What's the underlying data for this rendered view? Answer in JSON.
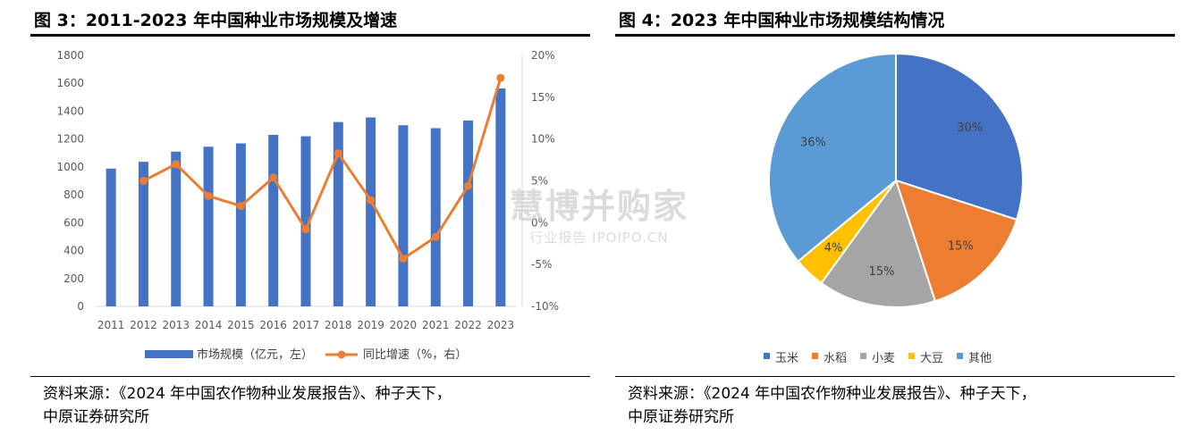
{
  "left": {
    "title": "图 3：2011-2023 年中国种业市场规模及增速",
    "source_line1": "资料来源：《2024 年中国农作物种业发展报告》、种子天下，",
    "source_line2": "中原证券研究所"
  },
  "right": {
    "title": "图 4：2023 年中国种业市场规模结构情况",
    "source_line1": "资料来源：《2024 年中国农作物种业发展报告》、种子天下，",
    "source_line2": "中原证券研究所"
  },
  "watermark": {
    "main": "慧博",
    "brand": "并购家",
    "sub": "行业报告 IPOIPO.CN"
  },
  "chart_data": [
    {
      "type": "bar",
      "categories": [
        "2011",
        "2012",
        "2013",
        "2014",
        "2015",
        "2016",
        "2017",
        "2018",
        "2019",
        "2020",
        "2021",
        "2022",
        "2023"
      ],
      "series": [
        {
          "name": "市场规模（亿元，左）",
          "type": "bar",
          "axis": "left",
          "color": "#4472C4",
          "values": [
            988,
            1037,
            1110,
            1145,
            1169,
            1230,
            1220,
            1322,
            1355,
            1299,
            1278,
            1333,
            1563
          ]
        },
        {
          "name": "同比增速（%，右）",
          "type": "line",
          "axis": "right",
          "color": "#ED7D31",
          "values": [
            null,
            5.0,
            7.0,
            3.2,
            2.0,
            5.4,
            -0.8,
            8.3,
            2.7,
            -4.3,
            -1.7,
            4.4,
            17.3
          ]
        }
      ],
      "y_left": {
        "min": 0,
        "max": 1800,
        "step": 200,
        "ticks": [
          "0",
          "200",
          "400",
          "600",
          "800",
          "1000",
          "1200",
          "1400",
          "1600",
          "1800"
        ]
      },
      "y_right": {
        "min": -10,
        "max": 20,
        "step": 5,
        "ticks": [
          "-10%",
          "-5%",
          "0%",
          "5%",
          "10%",
          "15%",
          "20%"
        ]
      },
      "grid": false,
      "legend_position": "bottom"
    },
    {
      "type": "pie",
      "slices": [
        {
          "name": "玉米",
          "value": 30,
          "label": "30%",
          "color": "#4472C4"
        },
        {
          "name": "水稻",
          "value": 15,
          "label": "15%",
          "color": "#ED7D31"
        },
        {
          "name": "小麦",
          "value": 15,
          "label": "15%",
          "color": "#A5A5A5"
        },
        {
          "name": "大豆",
          "value": 4,
          "label": "4%",
          "color": "#FFC000"
        },
        {
          "name": "其他",
          "value": 36,
          "label": "36%",
          "color": "#5B9BD5"
        }
      ],
      "legend_position": "bottom"
    }
  ]
}
